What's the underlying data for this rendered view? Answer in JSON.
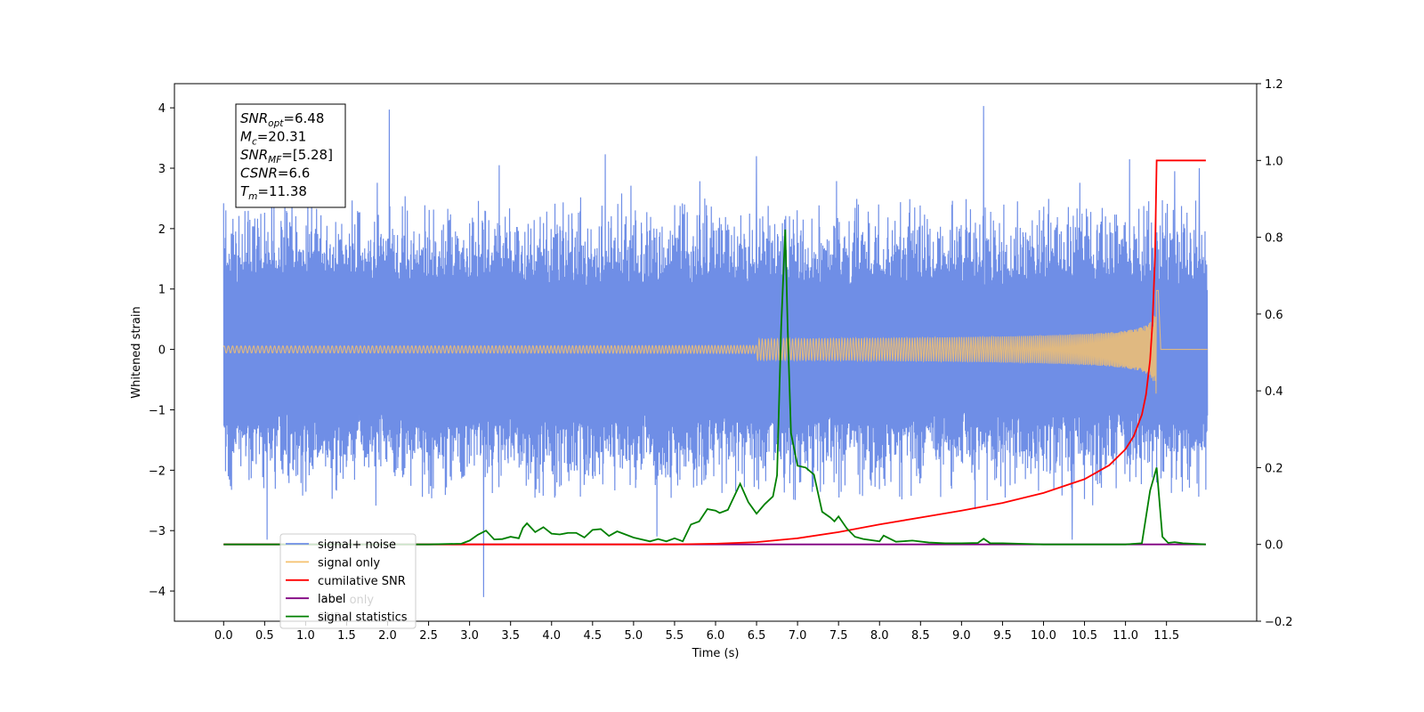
{
  "chart_data": {
    "type": "line",
    "xlabel": "Time (s)",
    "ylabel_left": "Whitened strain",
    "xlim": [
      -0.6,
      12.6
    ],
    "ylim_left": [
      -4.5,
      4.4
    ],
    "ylim_right": [
      -0.2,
      1.2
    ],
    "xticks": [
      "0.0",
      "0.5",
      "1.0",
      "1.5",
      "2.0",
      "2.5",
      "3.0",
      "3.5",
      "4.0",
      "4.5",
      "5.0",
      "5.5",
      "6.0",
      "6.5",
      "7.0",
      "7.5",
      "8.0",
      "8.5",
      "9.0",
      "9.5",
      "10.0",
      "10.5",
      "11.0",
      "11.5"
    ],
    "yticks_left": [
      -4,
      -3,
      -2,
      -1,
      0,
      1,
      2,
      3,
      4
    ],
    "yticks_right": [
      "−0.2",
      "0.0",
      "0.2",
      "0.4",
      "0.6",
      "0.8",
      "1.0",
      "1.2"
    ],
    "annotation": {
      "lines": [
        {
          "sym": "SNR",
          "sub": "opt",
          "rest": "=6.48"
        },
        {
          "sym": "M",
          "sub": "c",
          "rest": "=20.31"
        },
        {
          "sym": "SNR",
          "sub": "MF",
          "rest": "=[5.28]"
        },
        {
          "sym": "CSNR",
          "sub": "",
          "rest": "=6.6"
        },
        {
          "sym": "T",
          "sub": "m",
          "rest": "=11.38"
        }
      ],
      "placement": "top-left"
    },
    "legend": {
      "placement": "lower-left",
      "entries": [
        {
          "label": "signal+ noise",
          "color": "#6f8ee6"
        },
        {
          "label": "signal only",
          "color": "#f5c16f"
        },
        {
          "label": "cumilative SNR",
          "color": "#ff0000"
        },
        {
          "label": "label",
          "color": "#800080"
        },
        {
          "label": "signal statistics",
          "color": "#008000"
        }
      ],
      "hidden_text": [
        "label only",
        "SNR"
      ]
    },
    "series": [
      {
        "name": "signal+ noise",
        "axis": "left",
        "color": "#6f8ee6",
        "noise_band_abs_max": [
          [
            0.0,
            1.5
          ],
          [
            12.0,
            1.5
          ]
        ],
        "peaks": [
          {
            "x": 0.53,
            "y": -3.15
          },
          {
            "x": 2.02,
            "y": 3.97
          },
          {
            "x": 3.17,
            "y": -4.1
          },
          {
            "x": 6.5,
            "y": 3.2
          },
          {
            "x": 9.27,
            "y": 4.03
          },
          {
            "x": 10.35,
            "y": -3.15
          },
          {
            "x": 11.05,
            "y": 3.15
          },
          {
            "x": 11.9,
            "y": 3.0
          },
          {
            "x": 11.6,
            "y": 2.95
          },
          {
            "x": 3.36,
            "y": 3.05
          }
        ]
      },
      {
        "name": "signal only",
        "axis": "left",
        "color": "#f5c16f",
        "chirp": {
          "t_merge": 11.38,
          "amplitude_at_merge": 1.0,
          "base_amplitude": 0.02
        }
      },
      {
        "name": "cumilative SNR",
        "axis": "right",
        "color": "#ff0000",
        "x": [
          0.0,
          5.5,
          6.0,
          6.5,
          7.0,
          7.5,
          8.0,
          8.5,
          9.0,
          9.5,
          10.0,
          10.5,
          10.8,
          11.0,
          11.1,
          11.2,
          11.25,
          11.3,
          11.33,
          11.36,
          11.38,
          11.98
        ],
        "values": [
          0.0,
          0.0,
          0.002,
          0.006,
          0.016,
          0.032,
          0.052,
          0.07,
          0.088,
          0.108,
          0.134,
          0.17,
          0.206,
          0.248,
          0.282,
          0.338,
          0.39,
          0.48,
          0.58,
          0.75,
          1.0,
          1.0
        ]
      },
      {
        "name": "label",
        "axis": "right",
        "color": "#800080",
        "x": [
          0.0,
          11.98
        ],
        "values": [
          0.0,
          0.0
        ]
      },
      {
        "name": "signal statistics",
        "axis": "right",
        "color": "#008000",
        "x": [
          0.0,
          2.5,
          2.9,
          3.0,
          3.1,
          3.2,
          3.3,
          3.4,
          3.5,
          3.6,
          3.65,
          3.7,
          3.8,
          3.9,
          4.0,
          4.1,
          4.2,
          4.3,
          4.4,
          4.5,
          4.6,
          4.7,
          4.8,
          5.0,
          5.2,
          5.3,
          5.4,
          5.5,
          5.6,
          5.7,
          5.8,
          5.9,
          6.0,
          6.05,
          6.15,
          6.3,
          6.4,
          6.5,
          6.6,
          6.7,
          6.75,
          6.8,
          6.85,
          6.88,
          6.92,
          7.0,
          7.1,
          7.2,
          7.3,
          7.4,
          7.45,
          7.5,
          7.6,
          7.7,
          7.8,
          8.0,
          8.05,
          8.2,
          8.4,
          8.6,
          8.8,
          9.0,
          9.2,
          9.27,
          9.35,
          9.5,
          10.0,
          11.0,
          11.2,
          11.3,
          11.38,
          11.45,
          11.52,
          11.6,
          11.7,
          11.98
        ],
        "values": [
          0.0,
          0.0,
          0.002,
          0.01,
          0.025,
          0.036,
          0.013,
          0.014,
          0.02,
          0.016,
          0.043,
          0.055,
          0.032,
          0.045,
          0.028,
          0.026,
          0.03,
          0.03,
          0.018,
          0.038,
          0.04,
          0.022,
          0.034,
          0.018,
          0.008,
          0.014,
          0.008,
          0.016,
          0.008,
          0.052,
          0.06,
          0.092,
          0.088,
          0.082,
          0.09,
          0.158,
          0.11,
          0.08,
          0.105,
          0.125,
          0.18,
          0.565,
          0.82,
          0.56,
          0.29,
          0.205,
          0.2,
          0.182,
          0.085,
          0.07,
          0.06,
          0.073,
          0.042,
          0.02,
          0.014,
          0.008,
          0.023,
          0.007,
          0.01,
          0.005,
          0.003,
          0.003,
          0.004,
          0.015,
          0.003,
          0.003,
          0.0,
          0.0,
          0.003,
          0.14,
          0.2,
          0.02,
          0.004,
          0.006,
          0.003,
          0.0
        ]
      }
    ]
  }
}
